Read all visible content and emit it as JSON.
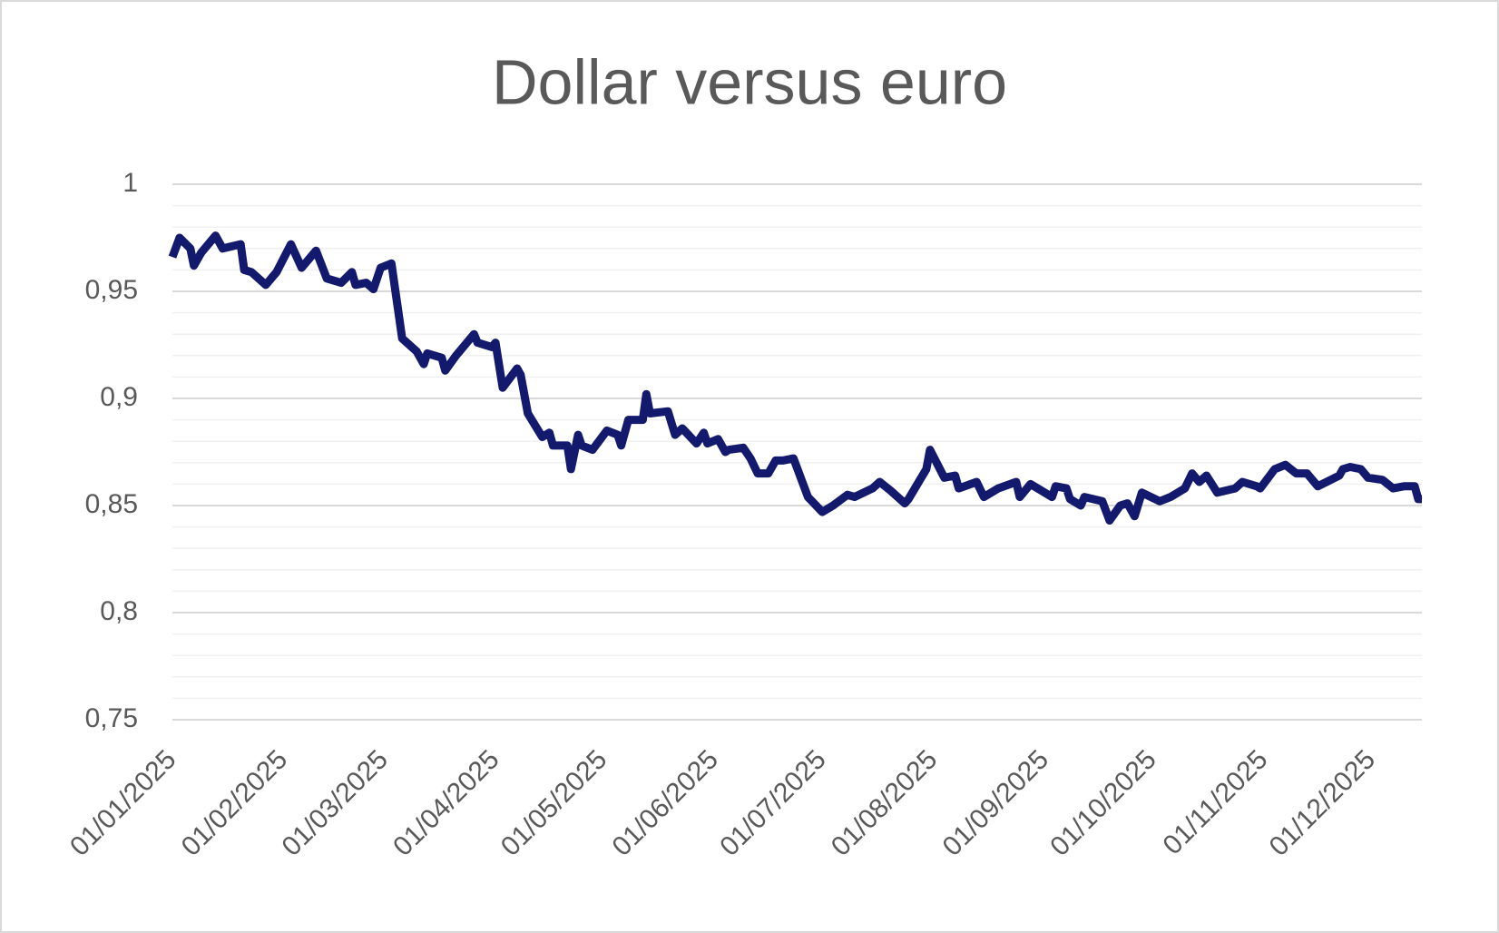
{
  "chart_data": {
    "type": "line",
    "title": "Dollar versus euro",
    "x": [
      "01/01/2025",
      "03/01/2025",
      "06/01/2025",
      "07/01/2025",
      "09/01/2025",
      "13/01/2025",
      "15/01/2025",
      "20/01/2025",
      "21/01/2025",
      "23/01/2025",
      "27/01/2025",
      "30/01/2025",
      "03/02/2025",
      "06/02/2025",
      "10/02/2025",
      "13/02/2025",
      "17/02/2025",
      "20/02/2025",
      "21/02/2025",
      "24/02/2025",
      "26/02/2025",
      "28/02/2025",
      "03/03/2025",
      "06/03/2025",
      "10/03/2025",
      "12/03/2025",
      "13/03/2025",
      "17/03/2025",
      "18/03/2025",
      "21/03/2025",
      "25/03/2025",
      "26/03/2025",
      "27/03/2025",
      "31/03/2025",
      "01/04/2025",
      "03/04/2025",
      "07/04/2025",
      "08/04/2025",
      "10/04/2025",
      "14/04/2025",
      "16/04/2025",
      "17/04/2025",
      "21/04/2025",
      "22/04/2025",
      "24/04/2025",
      "25/04/2025",
      "28/04/2025",
      "02/05/2025",
      "05/05/2025",
      "06/05/2025",
      "08/05/2025",
      "12/05/2025",
      "13/05/2025",
      "14/05/2025",
      "19/05/2025",
      "21/05/2025",
      "23/05/2025",
      "27/05/2025",
      "29/05/2025",
      "30/05/2025",
      "02/06/2025",
      "04/06/2025",
      "05/06/2025",
      "09/06/2025",
      "11/06/2025",
      "13/06/2025",
      "16/06/2025",
      "18/06/2025",
      "20/06/2025",
      "23/06/2025",
      "27/06/2025",
      "01/07/2025",
      "04/07/2025",
      "08/07/2025",
      "10/07/2025",
      "15/07/2025",
      "17/07/2025",
      "20/07/2025",
      "24/07/2025",
      "25/07/2025",
      "30/07/2025",
      "31/07/2025",
      "04/08/2025",
      "07/08/2025",
      "08/08/2025",
      "13/08/2025",
      "15/08/2025",
      "19/08/2025",
      "24/08/2025",
      "25/08/2025",
      "28/08/2025",
      "31/08/2025",
      "03/09/2025",
      "04/09/2025",
      "07/09/2025",
      "08/09/2025",
      "11/09/2025",
      "12/09/2025",
      "17/09/2025",
      "19/09/2025",
      "22/09/2025",
      "24/09/2025",
      "26/09/2025",
      "28/09/2025",
      "03/10/2025",
      "06/10/2025",
      "10/10/2025",
      "12/10/2025",
      "14/10/2025",
      "16/10/2025",
      "19/10/2025",
      "24/10/2025",
      "26/10/2025",
      "30/10/2025",
      "31/10/2025",
      "04/11/2025",
      "07/11/2025",
      "10/11/2025",
      "13/11/2025",
      "16/11/2025",
      "22/11/2025",
      "23/11/2025",
      "25/11/2025",
      "28/11/2025",
      "30/11/2025",
      "04/12/2025",
      "07/12/2025",
      "10/12/2025",
      "13/12/2025",
      "14/12/2025",
      "15/12/2025"
    ],
    "series": [
      {
        "color": "#131a6e",
        "values": [
          0.966,
          0.975,
          0.97,
          0.962,
          0.968,
          0.976,
          0.97,
          0.972,
          0.96,
          0.959,
          0.953,
          0.959,
          0.972,
          0.961,
          0.969,
          0.956,
          0.954,
          0.959,
          0.953,
          0.954,
          0.951,
          0.961,
          0.963,
          0.928,
          0.922,
          0.916,
          0.921,
          0.919,
          0.913,
          0.92,
          0.928,
          0.93,
          0.926,
          0.924,
          0.926,
          0.905,
          0.914,
          0.911,
          0.893,
          0.882,
          0.884,
          0.878,
          0.878,
          0.867,
          0.883,
          0.878,
          0.876,
          0.885,
          0.883,
          0.878,
          0.89,
          0.89,
          0.902,
          0.893,
          0.894,
          0.883,
          0.886,
          0.879,
          0.884,
          0.879,
          0.881,
          0.875,
          0.876,
          0.877,
          0.872,
          0.865,
          0.865,
          0.871,
          0.871,
          0.872,
          0.854,
          0.847,
          0.85,
          0.855,
          0.854,
          0.858,
          0.861,
          0.857,
          0.851,
          0.853,
          0.867,
          0.876,
          0.863,
          0.864,
          0.858,
          0.861,
          0.854,
          0.858,
          0.861,
          0.854,
          0.86,
          0.857,
          0.854,
          0.859,
          0.858,
          0.853,
          0.85,
          0.854,
          0.852,
          0.843,
          0.85,
          0.851,
          0.845,
          0.856,
          0.852,
          0.854,
          0.858,
          0.865,
          0.861,
          0.864,
          0.856,
          0.858,
          0.861,
          0.859,
          0.858,
          0.867,
          0.869,
          0.865,
          0.865,
          0.859,
          0.864,
          0.867,
          0.868,
          0.867,
          0.863,
          0.862,
          0.858,
          0.859,
          0.859,
          0.853,
          0.853
        ]
      }
    ],
    "xlim": [
      "01/01/2025",
      "15/12/2025"
    ],
    "xticks": [
      "01/01/2025",
      "01/02/2025",
      "01/03/2025",
      "01/04/2025",
      "01/05/2025",
      "01/06/2025",
      "01/07/2025",
      "01/08/2025",
      "01/09/2025",
      "01/10/2025",
      "01/11/2025",
      "01/12/2025"
    ],
    "ylim": [
      0.75,
      1
    ],
    "yticks": [
      {
        "value": 0.75,
        "label": "0,75"
      },
      {
        "value": 0.8,
        "label": "0,8"
      },
      {
        "value": 0.85,
        "label": "0,85"
      },
      {
        "value": 0.9,
        "label": "0,9"
      },
      {
        "value": 0.95,
        "label": "0,95"
      },
      1
    ],
    "yminorticks": [
      0.76,
      0.77,
      0.78,
      0.79,
      0.81,
      0.82,
      0.83,
      0.84,
      0.86,
      0.87,
      0.88,
      0.89,
      0.91,
      0.92,
      0.93,
      0.94,
      0.96,
      0.97,
      0.98,
      0.99
    ],
    "grid": true
  }
}
